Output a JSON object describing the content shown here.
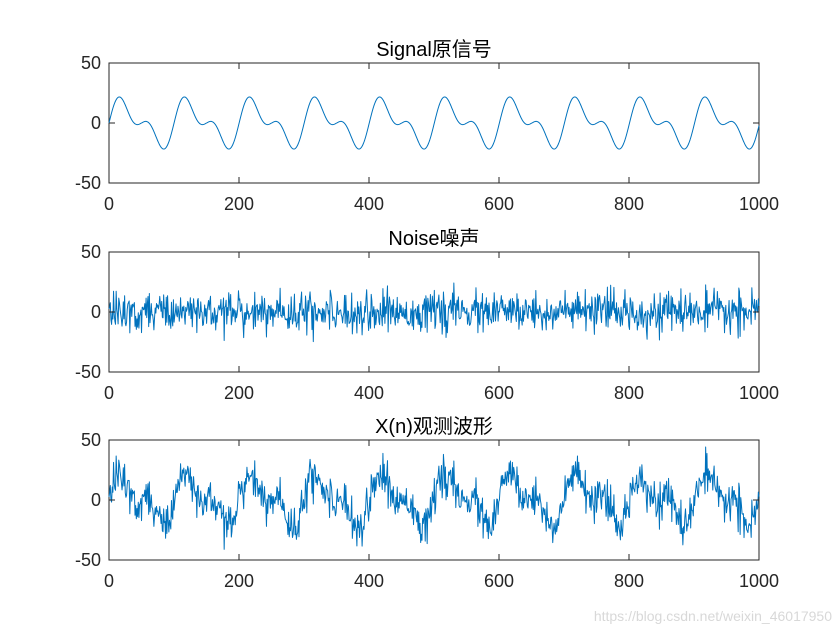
{
  "watermark": "https://blog.csdn.net/weixin_46017950",
  "chart_data": [
    {
      "type": "line",
      "title": "Signal原信号",
      "xlabel": "",
      "ylabel": "",
      "xlim": [
        0,
        1000
      ],
      "ylim": [
        -50,
        50
      ],
      "xticks": [
        0,
        200,
        400,
        600,
        800,
        1000
      ],
      "yticks": [
        -50,
        0,
        50
      ],
      "grid": false,
      "color": "#0072BD",
      "series": [
        {
          "generator": "two-tone sinusoid",
          "components": [
            {
              "amplitude": 15,
              "period_samples": 100,
              "phase_deg": 0
            },
            {
              "amplitude": 10,
              "period_samples": 50,
              "phase_deg": 0
            }
          ],
          "n_samples": 1000,
          "y_approx_range": [
            -22,
            22
          ]
        }
      ]
    },
    {
      "type": "line",
      "title": "Noise噪声",
      "xlabel": "",
      "ylabel": "",
      "xlim": [
        0,
        1000
      ],
      "ylim": [
        -50,
        50
      ],
      "xticks": [
        0,
        200,
        400,
        600,
        800,
        1000
      ],
      "yticks": [
        -50,
        0,
        50
      ],
      "grid": false,
      "color": "#0072BD",
      "series": [
        {
          "generator": "gaussian noise",
          "std": 8,
          "n_samples": 1000,
          "y_approx_range": [
            -30,
            32
          ]
        }
      ]
    },
    {
      "type": "line",
      "title": "X(n)观测波形",
      "xlabel": "",
      "ylabel": "",
      "xlim": [
        0,
        1000
      ],
      "ylim": [
        -50,
        50
      ],
      "xticks": [
        0,
        200,
        400,
        600,
        800,
        1000
      ],
      "yticks": [
        -50,
        0,
        50
      ],
      "grid": false,
      "color": "#0072BD",
      "series": [
        {
          "generator": "signal plus noise",
          "n_samples": 1000,
          "y_approx_range": [
            -43,
            47
          ]
        }
      ]
    }
  ]
}
